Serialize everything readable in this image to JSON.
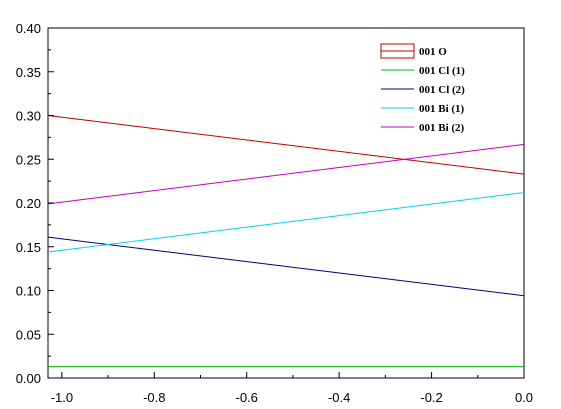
{
  "chart_data": {
    "type": "line",
    "title": "",
    "xlabel": "",
    "ylabel": "",
    "xlim": [
      -1.03,
      0.0
    ],
    "ylim": [
      0.0,
      0.4
    ],
    "x_ticks": [
      -1.0,
      -0.8,
      -0.6,
      -0.4,
      -0.2,
      0.0
    ],
    "x_tick_labels": [
      "-1.0",
      "-0.8",
      "-0.6",
      "-0.4",
      "-0.2",
      "0.0"
    ],
    "y_ticks": [
      0.0,
      0.05,
      0.1,
      0.15,
      0.2,
      0.25,
      0.3,
      0.35,
      0.4
    ],
    "y_tick_labels": [
      "0.00",
      "0.05",
      "0.10",
      "0.15",
      "0.20",
      "0.25",
      "0.30",
      "0.35",
      "0.40"
    ],
    "grid": false,
    "legend_position": "top-right",
    "series": [
      {
        "name": "001 O",
        "color": "#c00000",
        "x": [
          -1.03,
          0.0
        ],
        "y": [
          0.3,
          0.233
        ]
      },
      {
        "name": "001 Cl (1)",
        "color": "#00c000",
        "x": [
          -1.03,
          0.0
        ],
        "y": [
          0.013,
          0.013
        ]
      },
      {
        "name": "001 Cl (2)",
        "color": "#00007f",
        "x": [
          -1.03,
          0.0
        ],
        "y": [
          0.161,
          0.094
        ]
      },
      {
        "name": "001 Bi (1)",
        "color": "#00d8e0",
        "x": [
          -1.03,
          0.0
        ],
        "y": [
          0.144,
          0.212
        ]
      },
      {
        "name": "001 Bi (2)",
        "color": "#c000c0",
        "x": [
          -1.03,
          0.0
        ],
        "y": [
          0.199,
          0.267
        ]
      }
    ]
  }
}
